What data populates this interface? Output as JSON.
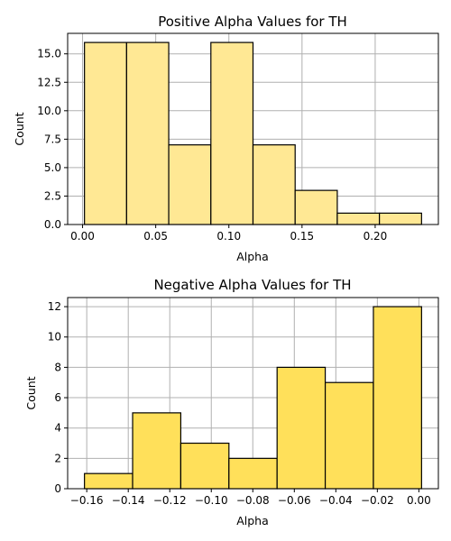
{
  "chart_data": [
    {
      "type": "bar",
      "title": "Positive Alpha Values for TH",
      "xlabel": "Alpha",
      "ylabel": "Count",
      "bin_edges": [
        0.0013,
        0.0301,
        0.0589,
        0.0877,
        0.1165,
        0.1453,
        0.1741,
        0.2029,
        0.2317
      ],
      "values": [
        16,
        16,
        7,
        16,
        7,
        3,
        1,
        1
      ],
      "xlim": [
        -0.0102,
        0.2432
      ],
      "ylim": [
        0,
        16.8
      ],
      "xticks": [
        0.0,
        0.05,
        0.1,
        0.15,
        0.2
      ],
      "xtick_labels": [
        "0.00",
        "0.05",
        "0.10",
        "0.15",
        "0.20"
      ],
      "yticks": [
        0.0,
        2.5,
        5.0,
        7.5,
        10.0,
        12.5,
        15.0
      ],
      "ytick_labels": [
        "0.0",
        "2.5",
        "5.0",
        "7.5",
        "10.0",
        "12.5",
        "15.0"
      ],
      "grid": true,
      "bar_color": "#ffe894"
    },
    {
      "type": "bar",
      "title": "Negative Alpha Values for TH",
      "xlabel": "Alpha",
      "ylabel": "Count",
      "bin_edges": [
        -0.1611,
        -0.1379,
        -0.1147,
        -0.0915,
        -0.0683,
        -0.0451,
        -0.0219,
        0.0013
      ],
      "values": [
        1,
        5,
        3,
        2,
        8,
        7,
        12
      ],
      "xlim": [
        -0.1692,
        0.0094
      ],
      "ylim": [
        0,
        12.6
      ],
      "xticks": [
        -0.16,
        -0.14,
        -0.12,
        -0.1,
        -0.08,
        -0.06,
        -0.04,
        -0.02,
        0.0
      ],
      "xtick_labels": [
        "−0.16",
        "−0.14",
        "−0.12",
        "−0.10",
        "−0.08",
        "−0.06",
        "−0.04",
        "−0.02",
        "0.00"
      ],
      "yticks": [
        0,
        2,
        4,
        6,
        8,
        10,
        12
      ],
      "ytick_labels": [
        "0",
        "2",
        "4",
        "6",
        "8",
        "10",
        "12"
      ],
      "grid": true,
      "bar_color": "#ffe05a"
    }
  ]
}
